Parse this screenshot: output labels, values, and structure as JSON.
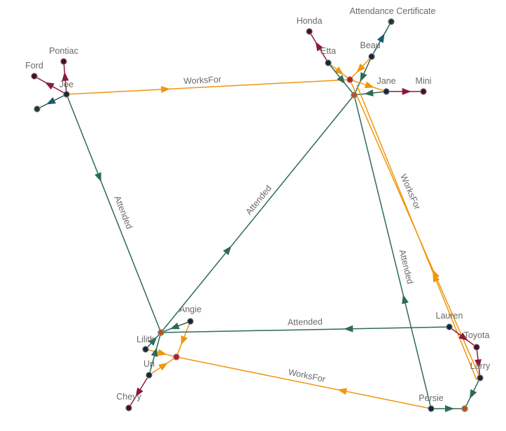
{
  "colors": {
    "attended": "#2e6b55",
    "works_for": "#f0960e",
    "owns": "#8b1a3a",
    "certificate": "#1e5a6a",
    "person": "#15283a",
    "car": "#4a0f2a",
    "school": "#b5561c",
    "company": "#c41a1a",
    "document": "#1f3a2f"
  },
  "nodes": [
    {
      "id": "joe",
      "label": "Joe",
      "kind": "person"
    },
    {
      "id": "ford",
      "label": "Ford",
      "kind": "car"
    },
    {
      "id": "pontiac",
      "label": "Pontiac",
      "kind": "car"
    },
    {
      "id": "joe_doc",
      "label": "",
      "kind": "document"
    },
    {
      "id": "honda",
      "label": "Honda",
      "kind": "car"
    },
    {
      "id": "etta",
      "label": "Etta",
      "kind": "person"
    },
    {
      "id": "beau",
      "label": "Beau",
      "kind": "person"
    },
    {
      "id": "cert",
      "label": "Attendance Certificate",
      "kind": "document"
    },
    {
      "id": "company1",
      "label": "",
      "kind": "company"
    },
    {
      "id": "school1",
      "label": "",
      "kind": "school"
    },
    {
      "id": "jane",
      "label": "Jane",
      "kind": "person"
    },
    {
      "id": "mini",
      "label": "Mini",
      "kind": "car"
    },
    {
      "id": "angie",
      "label": "Angie",
      "kind": "person"
    },
    {
      "id": "school2",
      "label": "",
      "kind": "school"
    },
    {
      "id": "lilith",
      "label": "Lilith",
      "kind": "person"
    },
    {
      "id": "company2",
      "label": "",
      "kind": "company"
    },
    {
      "id": "uri",
      "label": "Uri",
      "kind": "person"
    },
    {
      "id": "chevy",
      "label": "Chevy",
      "kind": "car"
    },
    {
      "id": "lauren",
      "label": "Lauren",
      "kind": "person"
    },
    {
      "id": "toyota",
      "label": "Toyota",
      "kind": "car"
    },
    {
      "id": "larry",
      "label": "Larry",
      "kind": "person"
    },
    {
      "id": "persie",
      "label": "Persie",
      "kind": "person"
    },
    {
      "id": "school3",
      "label": "",
      "kind": "school"
    }
  ],
  "edges": [
    {
      "from": "joe",
      "to": "ford",
      "type": "owns",
      "label": ""
    },
    {
      "from": "joe",
      "to": "pontiac",
      "type": "owns",
      "label": ""
    },
    {
      "from": "joe",
      "to": "joe_doc",
      "type": "certificate",
      "label": ""
    },
    {
      "from": "joe",
      "to": "company1",
      "type": "works_for",
      "label": "WorksFor"
    },
    {
      "from": "joe",
      "to": "school2",
      "type": "attended",
      "label": "Attended"
    },
    {
      "from": "etta",
      "to": "honda",
      "type": "owns",
      "label": ""
    },
    {
      "from": "etta",
      "to": "company1",
      "type": "works_for",
      "label": ""
    },
    {
      "from": "etta",
      "to": "school1",
      "type": "attended",
      "label": ""
    },
    {
      "from": "beau",
      "to": "cert",
      "type": "certificate",
      "label": ""
    },
    {
      "from": "beau",
      "to": "company1",
      "type": "works_for",
      "label": ""
    },
    {
      "from": "beau",
      "to": "school1",
      "type": "attended",
      "label": ""
    },
    {
      "from": "company1",
      "to": "jane",
      "type": "works_for",
      "label": ""
    },
    {
      "from": "jane",
      "to": "school1",
      "type": "attended",
      "label": ""
    },
    {
      "from": "jane",
      "to": "mini",
      "type": "owns",
      "label": ""
    },
    {
      "from": "school2",
      "to": "school1",
      "type": "attended",
      "label": "Attended"
    },
    {
      "from": "persie",
      "to": "school1",
      "type": "attended",
      "label": "Attended"
    },
    {
      "from": "larry",
      "to": "company1",
      "type": "works_for",
      "label": "WorksFor"
    },
    {
      "from": "larry",
      "to": "school1",
      "type": "works_for",
      "label": ""
    },
    {
      "from": "angie",
      "to": "school2",
      "type": "attended",
      "label": ""
    },
    {
      "from": "angie",
      "to": "company2",
      "type": "works_for",
      "label": ""
    },
    {
      "from": "lilith",
      "to": "school2",
      "type": "attended",
      "label": ""
    },
    {
      "from": "lilith",
      "to": "company2",
      "type": "works_for",
      "label": ""
    },
    {
      "from": "uri",
      "to": "school2",
      "type": "attended",
      "label": ""
    },
    {
      "from": "uri",
      "to": "company2",
      "type": "works_for",
      "label": ""
    },
    {
      "from": "uri",
      "to": "chevy",
      "type": "owns",
      "label": ""
    },
    {
      "from": "lauren",
      "to": "school2",
      "type": "attended",
      "label": "Attended"
    },
    {
      "from": "lauren",
      "to": "toyota",
      "type": "owns",
      "label": ""
    },
    {
      "from": "toyota",
      "to": "larry",
      "type": "owns",
      "label": ""
    },
    {
      "from": "persie",
      "to": "company2",
      "type": "works_for",
      "label": "WorksFor"
    },
    {
      "from": "persie",
      "to": "school3",
      "type": "attended",
      "label": ""
    },
    {
      "from": "larry",
      "to": "school3",
      "type": "attended",
      "label": ""
    }
  ]
}
